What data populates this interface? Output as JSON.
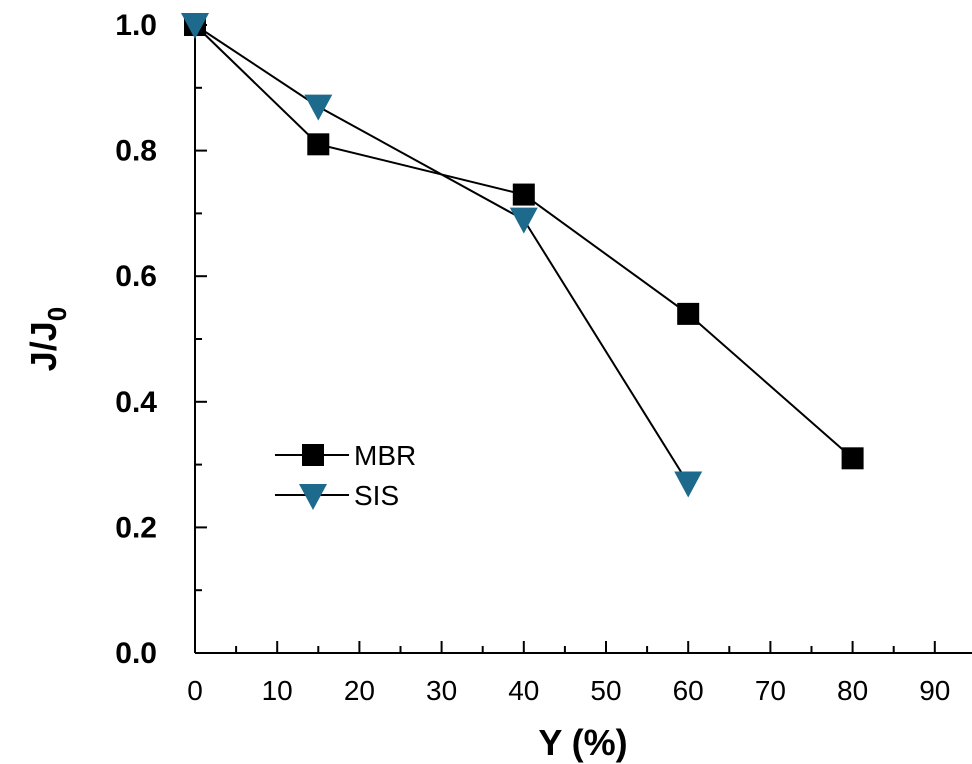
{
  "chart_data": {
    "type": "line",
    "title": "",
    "xlabel": "Y (%)",
    "ylabel": {
      "main": "J/J",
      "subscript": "0"
    },
    "xlim": [
      0,
      95
    ],
    "ylim": [
      0.0,
      1.0
    ],
    "x_ticks": [
      "0",
      "10",
      "20",
      "30",
      "40",
      "50",
      "60",
      "70",
      "80",
      "90"
    ],
    "y_ticks": [
      "0.0",
      "0.2",
      "0.4",
      "0.6",
      "0.8",
      "1.0"
    ],
    "legend_position": "left-lower-middle",
    "grid": false,
    "series": [
      {
        "name": "MBR",
        "marker": "square",
        "color": "#000000",
        "x": [
          0,
          15,
          40,
          60,
          80
        ],
        "y": [
          1.0,
          0.81,
          0.73,
          0.54,
          0.31
        ]
      },
      {
        "name": "SIS",
        "marker": "triangle-down",
        "color": "#1e6a8c",
        "x": [
          0,
          15,
          40,
          60
        ],
        "y": [
          1.0,
          0.87,
          0.69,
          0.27
        ]
      }
    ]
  }
}
